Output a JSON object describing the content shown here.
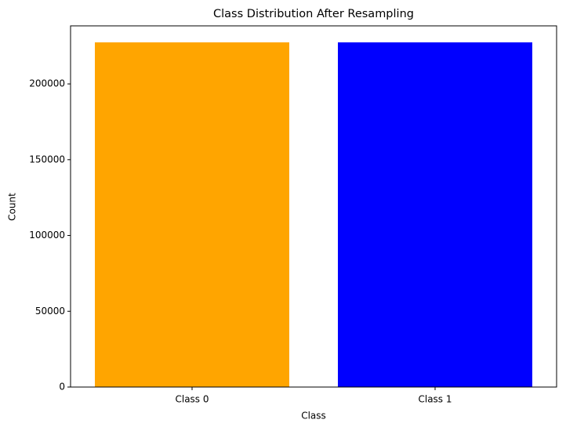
{
  "chart_data": {
    "type": "bar",
    "title": "Class Distribution After Resampling",
    "x_label": "Class",
    "y_label": "Count",
    "categories": [
      "Class 0",
      "Class 1"
    ],
    "values": [
      227400,
      227400
    ],
    "colors": [
      "#ffa500",
      "#0000ff"
    ],
    "ylim": [
      0,
      238300
    ],
    "yticks": [
      0,
      50000,
      100000,
      150000,
      200000
    ],
    "grid": false
  }
}
